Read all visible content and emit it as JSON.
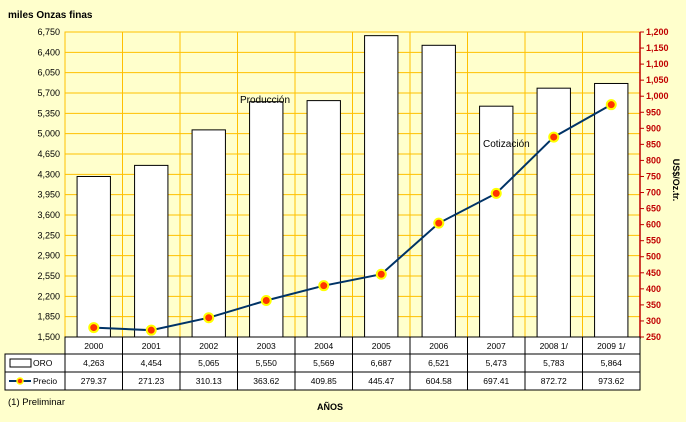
{
  "chart_data": {
    "type": "bar+line",
    "ylabel_left": "miles Onzas finas",
    "ylabel_right": "US$/Oz.tr.",
    "xlabel": "AÑOS",
    "footnote": "(1) Preliminar",
    "categories": [
      "2000",
      "2001",
      "2002",
      "2003",
      "2004",
      "2005",
      "2006",
      "2007",
      "2008  1/",
      "2009  1/"
    ],
    "series": [
      {
        "name": "ORO",
        "type": "bar",
        "axis": "left",
        "values": [
          4263,
          4454,
          5065,
          5550,
          5569,
          6687,
          6521,
          5473,
          5783,
          5864
        ],
        "labels": [
          "4,263",
          "4,454",
          "5,065",
          "5,550",
          "5,569",
          "6,687",
          "6,521",
          "5,473",
          "5,783",
          "5,864"
        ],
        "color": "#FFFFFF"
      },
      {
        "name": "Precio",
        "type": "line",
        "axis": "right",
        "values": [
          279.37,
          271.23,
          310.13,
          363.62,
          409.85,
          445.47,
          604.58,
          697.41,
          872.72,
          973.62
        ],
        "labels": [
          "279.37",
          "271.23",
          "310.13",
          "363.62",
          "409.85",
          "445.47",
          "604.58",
          "697.41",
          "872.72",
          "973.62"
        ],
        "color": "#003366",
        "marker_color": "#FF3300",
        "marker_edge": "#FFFF00"
      }
    ],
    "y_left": {
      "min": 1500,
      "max": 6750,
      "ticks": [
        1500,
        1850,
        2200,
        2550,
        2900,
        3250,
        3600,
        3950,
        4300,
        4650,
        5000,
        5350,
        5700,
        6050,
        6400,
        6750
      ],
      "tick_labels": [
        "1,500",
        "1,850",
        "2,200",
        "2,550",
        "2,900",
        "3,250",
        "3,600",
        "3,950",
        "4,300",
        "4,650",
        "5,000",
        "5,350",
        "5,700",
        "6,050",
        "6,400",
        "6,750"
      ]
    },
    "y_right": {
      "min": 250,
      "max": 1200,
      "ticks": [
        250,
        300,
        350,
        400,
        450,
        500,
        550,
        600,
        650,
        700,
        750,
        800,
        850,
        900,
        950,
        1000,
        1050,
        1100,
        1150,
        1200
      ],
      "tick_labels": [
        "250",
        "300",
        "350",
        "400",
        "450",
        "500",
        "550",
        "600",
        "650",
        "700",
        "750",
        "800",
        "850",
        "900",
        "950",
        "1,000",
        "1,050",
        "1,100",
        "1,150",
        "1,200"
      ]
    },
    "annotations": [
      {
        "text": "Producción"
      },
      {
        "text": "Cotización"
      }
    ],
    "grid": true,
    "colors": {
      "background": "#FFFFCC",
      "grid": "#FFC000",
      "right_axis": "#C00000"
    }
  }
}
